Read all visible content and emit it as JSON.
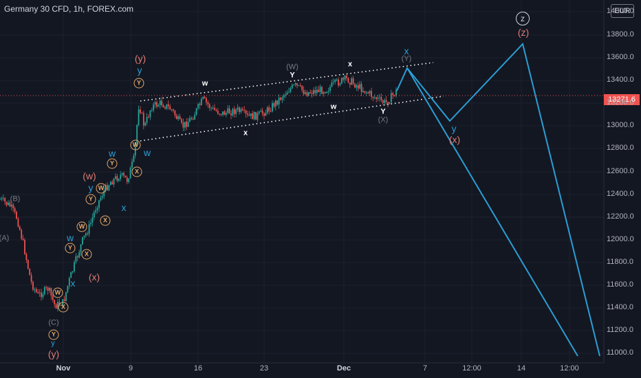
{
  "header": {
    "title": "Germany 30 CFD, 1h, FOREX.com",
    "currency": "EUR"
  },
  "price_axis": {
    "current_price": "13271.6",
    "ticks": [
      "14000.0",
      "13800.0",
      "13600.0",
      "13400.0",
      "13200.0",
      "13000.0",
      "12800.0",
      "12600.0",
      "12400.0",
      "12200.0",
      "12000.0",
      "11800.0",
      "11600.0",
      "11400.0",
      "11200.0",
      "11000.0"
    ]
  },
  "time_axis": {
    "ticks": [
      "Nov",
      "9",
      "16",
      "23",
      "Dec",
      "7",
      "12:00",
      "14",
      "12:00"
    ]
  },
  "colors": {
    "background": "#131722",
    "up": "#26a69a",
    "down": "#ef5350",
    "projection": "#2a9fd6",
    "wave_pink": "#e07d72",
    "circle": "#e8a96b"
  },
  "wave_labels": {
    "a": "(A)",
    "b": "(B)",
    "c": "(C)",
    "y_low_blue": "y",
    "y_low_pink": "(y)",
    "w1": "w",
    "y1": "y",
    "x1": "x",
    "w_paren": "(w)",
    "x_paren": "(x)",
    "y_top_pink": "(y)",
    "y_top_blue": "y",
    "w_after": "w",
    "w_mid": "w",
    "W_big": "(W)",
    "Y_mid": "Y",
    "X_low": "x",
    "x_top": "x",
    "w_low": "w",
    "Y_low": "Y",
    "X_gray": "(X)",
    "x_proj": "x",
    "Y_proj": "(Y)",
    "y_proj": "y",
    "x_proj_pink": "(x)",
    "z_circle": "z",
    "z_paren": "(z)"
  },
  "circled_labels": [
    "Y",
    "W",
    "X",
    "Y",
    "W",
    "X",
    "W",
    "Y",
    "X",
    "W",
    "Y",
    "X",
    "Y",
    "W",
    "X"
  ]
}
